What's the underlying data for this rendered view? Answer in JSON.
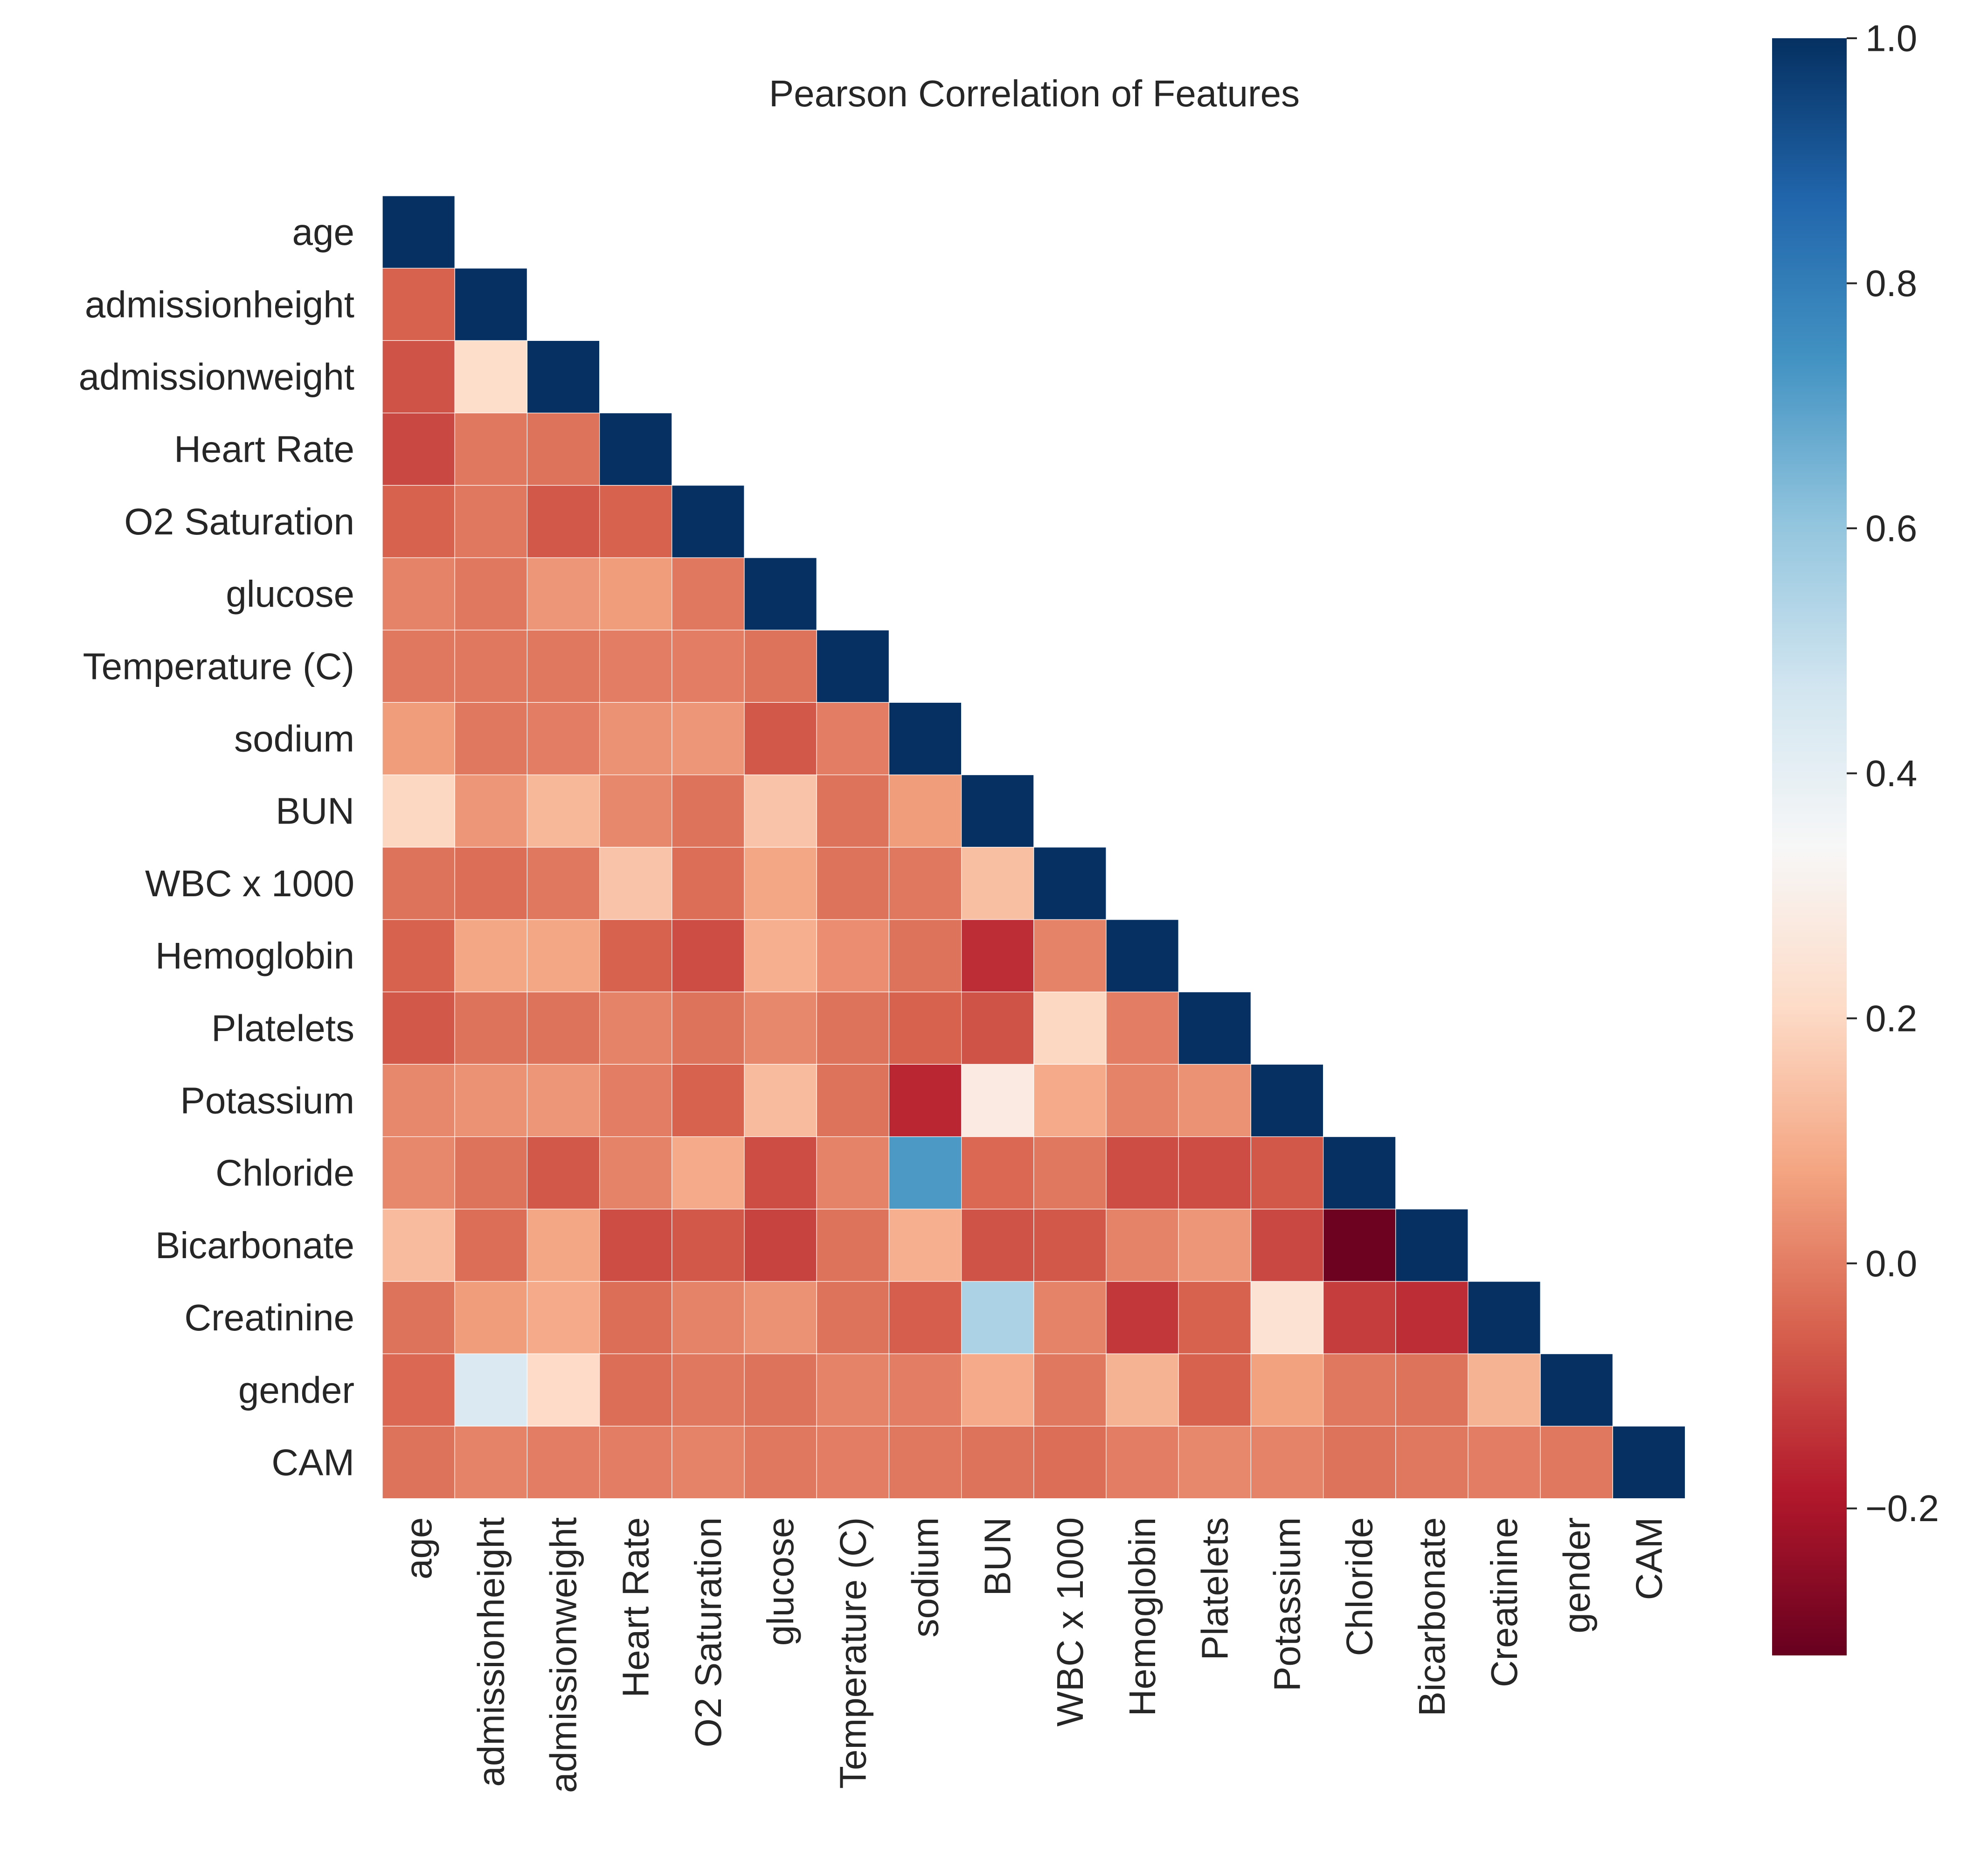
{
  "chart_data": {
    "type": "heatmap",
    "title": "Pearson Correlation of Features",
    "xlabel": "",
    "ylabel": "",
    "mask": "upper-triangle",
    "features": [
      "age",
      "admissionheight",
      "admissionweight",
      "Heart Rate",
      "O2 Saturation",
      "glucose",
      "Temperature (C)",
      "sodium",
      "BUN",
      "WBC x 1000",
      "Hemoglobin",
      "Platelets",
      "Potassium",
      "Chloride",
      "Bicarbonate",
      "Creatinine",
      "gender",
      "CAM"
    ],
    "values": [
      [
        1.0
      ],
      [
        -0.05,
        1.0
      ],
      [
        -0.08,
        0.22,
        1.0
      ],
      [
        -0.1,
        -0.01,
        -0.02,
        1.0
      ],
      [
        -0.05,
        -0.01,
        -0.07,
        -0.05,
        1.0
      ],
      [
        0.01,
        -0.01,
        0.05,
        0.06,
        -0.01,
        1.0
      ],
      [
        -0.01,
        -0.01,
        -0.01,
        0.0,
        0.0,
        -0.02,
        1.0
      ],
      [
        0.06,
        -0.01,
        0.0,
        0.04,
        0.05,
        -0.07,
        0.0,
        1.0
      ],
      [
        0.2,
        0.05,
        0.12,
        0.02,
        -0.02,
        0.15,
        -0.02,
        0.06,
        1.0
      ],
      [
        -0.02,
        -0.03,
        -0.01,
        0.15,
        -0.03,
        0.08,
        -0.02,
        -0.01,
        0.14,
        1.0
      ],
      [
        -0.05,
        0.08,
        0.08,
        -0.05,
        -0.09,
        0.1,
        0.03,
        -0.02,
        -0.15,
        0.01,
        1.0
      ],
      [
        -0.07,
        -0.02,
        -0.02,
        0.01,
        -0.02,
        0.02,
        -0.02,
        -0.05,
        -0.08,
        0.2,
        0.0,
        1.0
      ],
      [
        0.02,
        0.04,
        0.05,
        0.0,
        -0.05,
        0.13,
        -0.02,
        -0.16,
        0.28,
        0.09,
        0.01,
        0.04,
        1.0
      ],
      [
        0.02,
        -0.02,
        -0.07,
        0.01,
        0.09,
        -0.09,
        0.01,
        0.72,
        -0.04,
        -0.01,
        -0.09,
        -0.09,
        -0.07,
        1.0
      ],
      [
        0.13,
        -0.03,
        0.08,
        -0.09,
        -0.07,
        -0.11,
        -0.02,
        0.1,
        -0.08,
        -0.07,
        0.01,
        0.05,
        -0.1,
        -0.31,
        1.0
      ],
      [
        -0.02,
        0.06,
        0.09,
        -0.03,
        0.01,
        0.04,
        -0.02,
        -0.06,
        0.55,
        0.01,
        -0.13,
        -0.05,
        0.24,
        -0.12,
        -0.15,
        1.0
      ],
      [
        -0.04,
        0.44,
        0.21,
        -0.03,
        -0.01,
        -0.02,
        0.01,
        0.0,
        0.09,
        -0.01,
        0.11,
        -0.05,
        0.07,
        -0.01,
        -0.02,
        0.11,
        1.0
      ],
      [
        -0.02,
        0.01,
        0.0,
        0.0,
        0.01,
        -0.01,
        0.0,
        -0.01,
        -0.02,
        -0.03,
        0.0,
        0.02,
        0.01,
        -0.02,
        -0.01,
        0.0,
        -0.01,
        1.0
      ]
    ],
    "colorbar": {
      "colormap": "RdBu",
      "vmin": -0.32,
      "vmax": 1.0,
      "ticks": [
        "−0.2",
        "0.0",
        "0.2",
        "0.4",
        "0.6",
        "0.8",
        "1.0"
      ],
      "tick_values": [
        -0.2,
        0.0,
        0.2,
        0.4,
        0.6,
        0.8,
        1.0
      ]
    }
  }
}
